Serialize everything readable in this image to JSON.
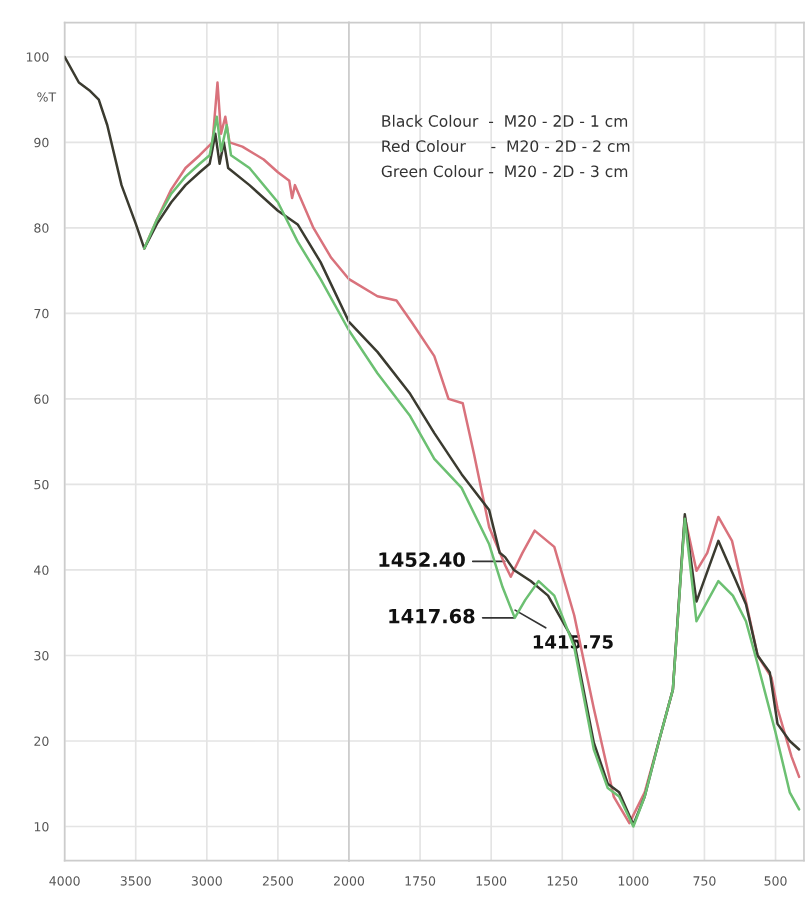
{
  "chart_data": [
    {
      "type": "line",
      "ylabel": "%T",
      "xlim": [
        4000,
        2000
      ],
      "xticks": [
        4000,
        3500,
        3000,
        2500,
        2000
      ],
      "ylim": [
        6,
        104
      ],
      "yticks": [
        10,
        20,
        30,
        40,
        50,
        60,
        70,
        80,
        90,
        100
      ],
      "grid": true,
      "legend": false,
      "marker": "none",
      "line_style": "solid",
      "series": [
        {
          "color": "#d9727c",
          "x": [
            3440,
            3350,
            3250,
            3150,
            3050,
            2960,
            2925,
            2900,
            2870,
            2840,
            2750,
            2600,
            2500,
            2420,
            2400,
            2380,
            2250,
            2125,
            2000
          ],
          "values": [
            77.6,
            81,
            84.5,
            87,
            88.5,
            90,
            97,
            91,
            93,
            90,
            89.5,
            88,
            86.5,
            85.5,
            83.5,
            85,
            80,
            76.5,
            74
          ]
        },
        {
          "color": "#3b3b30",
          "x": [
            4000,
            3900,
            3820,
            3760,
            3700,
            3600,
            3500,
            3440,
            3350,
            3250,
            3150,
            3050,
            2980,
            2940,
            2910,
            2880,
            2850,
            2700,
            2500,
            2361,
            2200,
            2000
          ],
          "values": [
            100,
            97,
            96,
            95,
            92,
            85,
            80.5,
            77.6,
            80.5,
            83,
            85,
            86.5,
            87.5,
            91,
            87.5,
            90,
            87,
            85,
            82,
            80.4,
            76,
            69
          ]
        },
        {
          "color": "#6cc072",
          "x": [
            3440,
            3350,
            3250,
            3150,
            3050,
            2980,
            2930,
            2900,
            2860,
            2830,
            2700,
            2500,
            2361,
            2200,
            2000
          ],
          "values": [
            77.6,
            81,
            84,
            86,
            87.5,
            88.5,
            93,
            89,
            92,
            88.5,
            87,
            83,
            78.4,
            74,
            68
          ]
        }
      ]
    },
    {
      "type": "line",
      "xlim": [
        2000,
        400
      ],
      "xticks": [
        1750,
        1500,
        1250,
        1000,
        750,
        500
      ],
      "ylim": [
        6,
        104
      ],
      "yticks": [
        10,
        20,
        30,
        40,
        50,
        60,
        70,
        80,
        90,
        100
      ],
      "tick_labels": "x",
      "grid": true,
      "legend": false,
      "marker": "none",
      "line_style": "solid",
      "series": [
        {
          "color": "#d9727c",
          "x": [
            2000,
            1900,
            1833,
            1780,
            1700,
            1650,
            1600,
            1560,
            1507,
            1450,
            1431,
            1390,
            1347,
            1278,
            1208,
            1139,
            1069,
            1014,
            960,
            910,
            861,
            819,
            778,
            740,
            701,
            653,
            604,
            563,
            514,
            493,
            444,
            417
          ],
          "values": [
            74,
            72,
            71.5,
            69,
            65,
            60,
            59.5,
            53.5,
            45,
            40.5,
            39.2,
            42,
            44.6,
            42.7,
            34.7,
            23.8,
            13.5,
            10.4,
            14,
            20,
            26,
            46.2,
            39.9,
            42,
            46.2,
            43.4,
            36.3,
            30,
            27.4,
            23.8,
            18.2,
            15.8
          ]
        },
        {
          "color": "#3b3b30",
          "x": [
            2000,
            1900,
            1785,
            1700,
            1604,
            1507,
            1470,
            1451,
            1420,
            1361,
            1300,
            1208,
            1139,
            1090,
            1050,
            1000,
            960,
            910,
            861,
            819,
            778,
            701,
            639,
            604,
            563,
            520,
            493,
            450,
            417
          ],
          "values": [
            69,
            65.5,
            60.6,
            56,
            51.2,
            47,
            42,
            41.5,
            40,
            38.7,
            37,
            31.6,
            19.8,
            15,
            14,
            10.2,
            13.5,
            20,
            26,
            46.5,
            36.3,
            43.4,
            38.7,
            36,
            30,
            28,
            22,
            20,
            19
          ]
        },
        {
          "color": "#6cc072",
          "x": [
            2000,
            1900,
            1785,
            1700,
            1604,
            1507,
            1460,
            1417,
            1380,
            1333,
            1278,
            1208,
            1139,
            1090,
            1050,
            1000,
            960,
            910,
            861,
            819,
            778,
            701,
            650,
            604,
            563,
            500,
            450,
            417
          ],
          "values": [
            68,
            63,
            58,
            53,
            49.6,
            43,
            38,
            34.4,
            36.5,
            38.7,
            37,
            31,
            19,
            14.5,
            13.5,
            10,
            13.5,
            20,
            26,
            46,
            34,
            38.7,
            37,
            34,
            29,
            21,
            14,
            12
          ]
        }
      ],
      "annotations": [
        "Black Colour  -  M20 - 2D - 1 cm",
        "Red Colour     -  M20 - 2D - 2 cm",
        "Green Colour -  M20 - 2D - 3 cm",
        {
          "text": "1452.40",
          "x": 1452.4,
          "y": 41
        },
        {
          "text": "1417.68",
          "x": 1417.68,
          "y": 34.4
        },
        {
          "text": "1415.75",
          "x": 1415.75,
          "y": 35.3
        }
      ]
    }
  ]
}
